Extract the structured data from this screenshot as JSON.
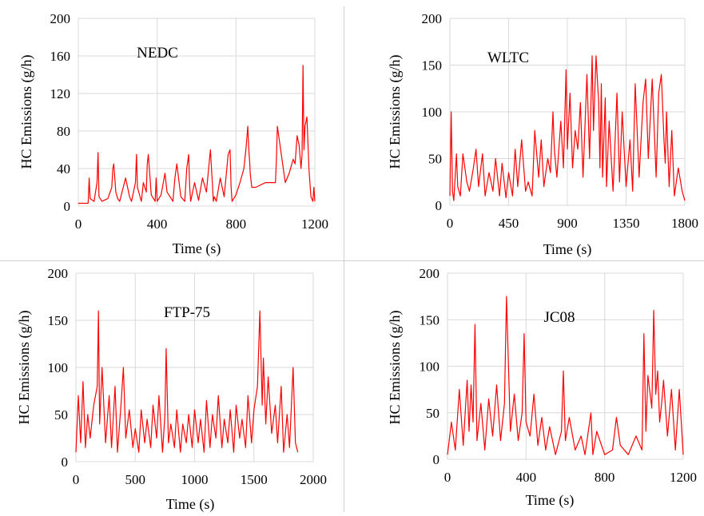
{
  "chart_data": [
    {
      "type": "line",
      "panel": "NEDC",
      "title": "NEDC",
      "xlabel": "Time (s)",
      "ylabel": "HC Emissions (g/h)",
      "xlim": [
        0,
        1200
      ],
      "ylim": [
        0,
        200
      ],
      "xticks": [
        0,
        400,
        800,
        1200
      ],
      "yticks": [
        0,
        40,
        80,
        120,
        160,
        200
      ],
      "grid": true,
      "color": "#ff0000",
      "series": [
        {
          "x": [
            0,
            50,
            55,
            60,
            80,
            95,
            100,
            105,
            120,
            150,
            170,
            175,
            180,
            190,
            200,
            210,
            240,
            260,
            270,
            290,
            295,
            300,
            320,
            330,
            345,
            350,
            355,
            370,
            390,
            395,
            400,
            420,
            440,
            450,
            480,
            490,
            500,
            520,
            540,
            550,
            560,
            565,
            570,
            590,
            610,
            630,
            650,
            670,
            680,
            685,
            690,
            700,
            720,
            740,
            760,
            770,
            775,
            780,
            800,
            820,
            840,
            850,
            860,
            865,
            870,
            872,
            880,
            900,
            950,
            1000,
            1005,
            1010,
            1020,
            1040,
            1050,
            1070,
            1090,
            1100,
            1110,
            1120,
            1130,
            1135,
            1140,
            1145,
            1150,
            1160,
            1170,
            1180,
            1190,
            1195,
            1200
          ],
          "y": [
            3,
            3,
            30,
            8,
            5,
            25,
            57,
            10,
            5,
            8,
            20,
            40,
            45,
            15,
            8,
            5,
            30,
            10,
            5,
            25,
            55,
            20,
            5,
            25,
            15,
            45,
            55,
            12,
            5,
            30,
            5,
            12,
            35,
            15,
            5,
            30,
            45,
            10,
            5,
            40,
            55,
            20,
            5,
            25,
            6,
            30,
            15,
            60,
            25,
            5,
            10,
            5,
            30,
            10,
            55,
            60,
            20,
            5,
            12,
            25,
            40,
            60,
            85,
            60,
            45,
            35,
            20,
            20,
            25,
            25,
            50,
            85,
            70,
            40,
            25,
            35,
            50,
            45,
            75,
            65,
            40,
            55,
            150,
            60,
            85,
            95,
            40,
            10,
            5,
            20,
            5
          ]
        }
      ]
    },
    {
      "type": "line",
      "panel": "WLTC",
      "title": "WLTC",
      "xlabel": "Time (s)",
      "ylabel": "HC Emissions (g/h)",
      "xlim": [
        0,
        1800
      ],
      "ylim": [
        0,
        200
      ],
      "xticks": [
        0,
        450,
        900,
        1350,
        1800
      ],
      "yticks": [
        0,
        50,
        100,
        150,
        200
      ],
      "grid": true,
      "color": "#ff0000",
      "series": [
        {
          "x": [
            0,
            10,
            20,
            30,
            50,
            60,
            80,
            100,
            130,
            150,
            180,
            200,
            220,
            250,
            270,
            300,
            330,
            350,
            380,
            400,
            430,
            450,
            480,
            500,
            520,
            550,
            580,
            600,
            630,
            650,
            680,
            700,
            720,
            750,
            770,
            790,
            800,
            820,
            850,
            870,
            890,
            900,
            920,
            940,
            960,
            980,
            1000,
            1020,
            1050,
            1070,
            1090,
            1100,
            1110,
            1120,
            1140,
            1150,
            1160,
            1170,
            1190,
            1200,
            1220,
            1250,
            1280,
            1300,
            1320,
            1350,
            1380,
            1400,
            1420,
            1450,
            1480,
            1500,
            1520,
            1550,
            1580,
            1600,
            1620,
            1640,
            1650,
            1660,
            1680,
            1700,
            1720,
            1750,
            1780,
            1800
          ],
          "y": [
            10,
            100,
            15,
            5,
            55,
            20,
            10,
            55,
            25,
            15,
            40,
            60,
            20,
            55,
            10,
            35,
            15,
            50,
            10,
            45,
            8,
            35,
            10,
            60,
            20,
            70,
            15,
            25,
            10,
            80,
            30,
            70,
            20,
            50,
            35,
            100,
            60,
            30,
            90,
            40,
            145,
            60,
            120,
            40,
            80,
            60,
            110,
            30,
            140,
            50,
            160,
            80,
            120,
            160,
            110,
            40,
            130,
            30,
            115,
            20,
            90,
            15,
            120,
            25,
            100,
            20,
            70,
            15,
            130,
            30,
            110,
            135,
            50,
            135,
            30,
            120,
            140,
            70,
            45,
            100,
            20,
            80,
            10,
            40,
            15,
            5
          ]
        }
      ]
    },
    {
      "type": "line",
      "panel": "FTP-75",
      "title": "FTP-75",
      "xlabel": "Time (s)",
      "ylabel": "HC Emissions (g/h)",
      "xlim": [
        0,
        2000
      ],
      "ylim": [
        0,
        200
      ],
      "xticks": [
        0,
        500,
        1000,
        1500,
        2000
      ],
      "yticks": [
        0,
        50,
        100,
        150,
        200
      ],
      "grid": true,
      "color": "#ff0000",
      "series": [
        {
          "x": [
            0,
            20,
            40,
            60,
            80,
            100,
            120,
            150,
            180,
            190,
            200,
            220,
            250,
            280,
            300,
            330,
            350,
            380,
            400,
            420,
            450,
            480,
            500,
            530,
            550,
            580,
            600,
            630,
            650,
            680,
            700,
            730,
            750,
            760,
            780,
            800,
            830,
            850,
            880,
            900,
            930,
            950,
            980,
            1000,
            1030,
            1050,
            1080,
            1100,
            1130,
            1150,
            1180,
            1200,
            1230,
            1250,
            1280,
            1300,
            1330,
            1350,
            1380,
            1400,
            1430,
            1450,
            1480,
            1500,
            1530,
            1550,
            1570,
            1580,
            1600,
            1620,
            1650,
            1680,
            1700,
            1730,
            1750,
            1780,
            1800,
            1830,
            1850,
            1870
          ],
          "y": [
            10,
            70,
            20,
            85,
            15,
            50,
            25,
            60,
            80,
            160,
            40,
            100,
            20,
            70,
            15,
            80,
            10,
            60,
            100,
            25,
            55,
            15,
            35,
            10,
            55,
            20,
            45,
            15,
            60,
            25,
            70,
            10,
            50,
            120,
            20,
            40,
            15,
            55,
            10,
            40,
            20,
            50,
            15,
            55,
            20,
            45,
            10,
            65,
            15,
            50,
            25,
            70,
            15,
            45,
            20,
            55,
            10,
            60,
            25,
            45,
            15,
            70,
            20,
            55,
            80,
            160,
            60,
            110,
            40,
            90,
            30,
            60,
            20,
            80,
            10,
            50,
            15,
            100,
            20,
            10
          ]
        }
      ]
    },
    {
      "type": "line",
      "panel": "JC08",
      "title": "JC08",
      "xlabel": "Time (s)",
      "ylabel": "HC Emissions (g/h)",
      "xlim": [
        0,
        1200
      ],
      "ylim": [
        0,
        200
      ],
      "xticks": [
        0,
        400,
        800,
        1200
      ],
      "yticks": [
        0,
        50,
        100,
        150,
        200
      ],
      "grid": true,
      "color": "#ff0000",
      "series": [
        {
          "x": [
            0,
            20,
            40,
            60,
            80,
            100,
            110,
            120,
            130,
            140,
            150,
            170,
            190,
            210,
            230,
            250,
            270,
            290,
            300,
            320,
            340,
            360,
            380,
            390,
            400,
            420,
            440,
            460,
            480,
            500,
            520,
            550,
            580,
            590,
            600,
            620,
            650,
            680,
            700,
            730,
            740,
            760,
            800,
            840,
            860,
            880,
            920,
            960,
            990,
            1000,
            1010,
            1020,
            1040,
            1050,
            1060,
            1070,
            1080,
            1090,
            1100,
            1120,
            1140,
            1160,
            1180,
            1200
          ],
          "y": [
            5,
            40,
            10,
            75,
            15,
            85,
            30,
            80,
            40,
            145,
            20,
            60,
            10,
            65,
            25,
            80,
            20,
            60,
            175,
            30,
            70,
            20,
            50,
            135,
            40,
            25,
            70,
            15,
            45,
            10,
            35,
            5,
            30,
            95,
            20,
            45,
            10,
            25,
            5,
            50,
            5,
            30,
            5,
            10,
            45,
            15,
            5,
            25,
            10,
            135,
            30,
            90,
            55,
            160,
            70,
            95,
            40,
            60,
            85,
            25,
            75,
            10,
            75,
            5
          ]
        }
      ]
    }
  ]
}
